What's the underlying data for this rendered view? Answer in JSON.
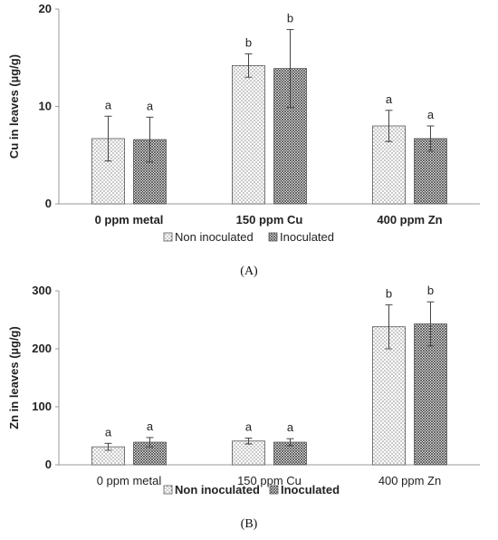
{
  "chart_data": [
    {
      "type": "bar",
      "panel_label": "(A)",
      "ylabel": "Cu in leaves (µg/g)",
      "ylim": [
        0,
        20
      ],
      "yticks": [
        0,
        10,
        20
      ],
      "grid": false,
      "legend_position": "bottom",
      "categories": [
        "0 ppm metal",
        "150 ppm Cu",
        "400 ppm Zn"
      ],
      "series": [
        {
          "name": "Non inoculated",
          "values": [
            6.7,
            14.2,
            8.0
          ],
          "errors": [
            2.3,
            1.2,
            1.6
          ],
          "letters": [
            "a",
            "b",
            "a"
          ]
        },
        {
          "name": "Inoculated",
          "values": [
            6.6,
            13.9,
            6.7
          ],
          "errors": [
            2.3,
            4.0,
            1.3
          ],
          "letters": [
            "a",
            "b",
            "a"
          ]
        }
      ]
    },
    {
      "type": "bar",
      "panel_label": "(B)",
      "ylabel": "Zn in leaves (µg/g)",
      "ylim": [
        0,
        300
      ],
      "yticks": [
        0,
        100,
        200,
        300
      ],
      "grid": false,
      "legend_position": "bottom",
      "categories": [
        "0 ppm metal",
        "150 ppm Cu",
        "400 ppm Zn"
      ],
      "series": [
        {
          "name": "Non inoculated",
          "values": [
            31,
            41,
            238
          ],
          "errors": [
            6,
            5,
            38
          ],
          "letters": [
            "a",
            "a",
            "b"
          ]
        },
        {
          "name": "Inoculated",
          "values": [
            39,
            39,
            243
          ],
          "errors": [
            8,
            6,
            38
          ],
          "letters": [
            "a",
            "a",
            "b"
          ]
        }
      ]
    }
  ]
}
